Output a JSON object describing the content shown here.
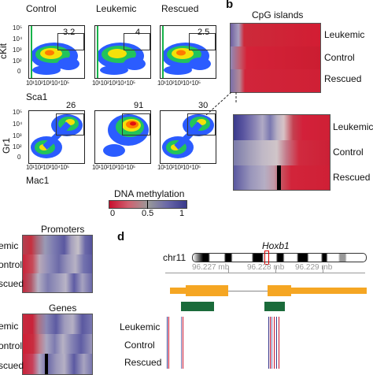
{
  "panels": {
    "a": {
      "top_headers": [
        "Control",
        "Leukemic",
        "Rescued"
      ],
      "top_values": [
        "3.2",
        "4",
        "2.5"
      ],
      "top_y_axis": "cKit",
      "top_x_axis": "Sca1",
      "bottom_values": [
        "26",
        "91",
        "30"
      ],
      "bottom_y_axis": "Gr1",
      "bottom_x_axis": "Mac1",
      "y_ticks": [
        "10⁵",
        "10⁴",
        "10³",
        "10²",
        "0"
      ],
      "x_ticks": [
        "10¹",
        "10²",
        "10³",
        "10⁴",
        "10⁵"
      ]
    },
    "b": {
      "letter": "b",
      "title": "CpG islands",
      "rows": [
        "Leukemic",
        "Control",
        "Rescued"
      ]
    },
    "colorbar": {
      "title": "DNA methylation",
      "ticks": [
        "0",
        "0.5",
        "1"
      ],
      "colors": [
        "#c8102e",
        "#9a9a9a",
        "#3a3a8c"
      ]
    },
    "c": {
      "promoters_title": "Promoters",
      "promoters_rows": [
        "emic",
        "ontrol",
        "scued"
      ],
      "genes_title": "Genes",
      "genes_rows": [
        "emic",
        "ontrol",
        "scued"
      ]
    },
    "d": {
      "letter": "d",
      "chromosome": "chr11",
      "gene": "Hoxb1",
      "coords": [
        "96.227 mb",
        "96.228 mb",
        "96.229 mb"
      ],
      "rows": [
        "Leukemic",
        "Control",
        "Rescued"
      ]
    }
  }
}
